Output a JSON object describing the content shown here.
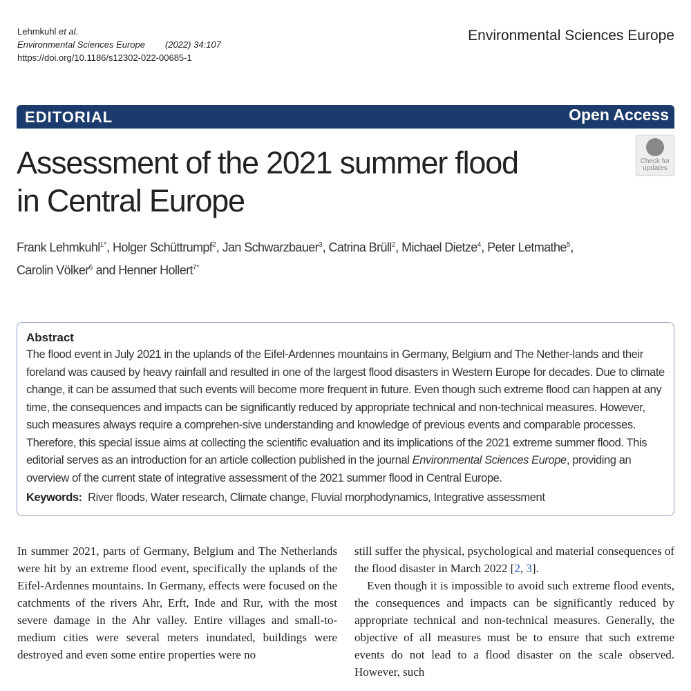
{
  "header": {
    "authors_short": "Lehmkuhl",
    "et_al": "et al.",
    "journal": "Environmental Sciences Europe",
    "citation": "(2022) 34:107",
    "doi": "https://doi.org/10.1186/s12302-022-00685-1",
    "journal_right": "Environmental Sciences Europe"
  },
  "banner": {
    "type": "EDITORIAL",
    "access": "Open Access",
    "color": "#1a3b6b"
  },
  "title_line1": "Assessment of the 2021 summer flood",
  "title_line2": "in Central Europe",
  "check_updates": {
    "line1": "Check for",
    "line2": "updates"
  },
  "authors": [
    {
      "name": "Frank Lehmkuhl",
      "sup": "1*"
    },
    {
      "name": "Holger Schüttrumpf",
      "sup": "2"
    },
    {
      "name": "Jan Schwarzbauer",
      "sup": "3"
    },
    {
      "name": "Catrina Brüll",
      "sup": "2"
    },
    {
      "name": "Michael Dietze",
      "sup": "4"
    },
    {
      "name": "Peter Letmathe",
      "sup": "5"
    },
    {
      "name": "Carolin Völker",
      "sup": "6"
    },
    {
      "name": "Henner Hollert",
      "sup": "7*"
    }
  ],
  "authors_sep": ", ",
  "authors_and": " and ",
  "abstract": {
    "heading": "Abstract",
    "text_before": "The flood event in July 2021 in the uplands of the Eifel-Ardennes mountains in Germany, Belgium and The Nether-lands and their foreland was caused by heavy rainfall and resulted in one of the largest flood disasters in Western Europe for decades. Due to climate change, it can be assumed that such events will become more frequent in future. Even though such extreme flood can happen at any time, the consequences and impacts can be significantly reduced by appropriate technical and non-technical measures. However, such measures always require a comprehen-sive understanding and knowledge of previous events and comparable processes. Therefore, this special issue aims at collecting the scientific evaluation and its implications of the 2021 extreme summer flood. This editorial serves as an introduction for an article collection published in the journal ",
    "text_italic": "Environmental Sciences Europe",
    "text_after": ", providing an overview of the current state of integrative assessment of the 2021 summer flood in Central Europe.",
    "keywords_label": "Keywords:",
    "keywords": "River floods, Water research, Climate change, Fluvial morphodynamics, Integrative assessment"
  },
  "body": {
    "left": "In summer 2021, parts of Germany, Belgium and The Netherlands were hit by an extreme flood event, specifically the uplands of the Eifel-Ardennes mountains. In Germany, effects were focused on the catchments of the rivers Ahr, Erft, Inde and Rur, with the most severe damage in the Ahr valley. Entire villages and small-to-medium cities were several meters inundated, buildings were destroyed and even some entire properties were no",
    "right_p1_before": "still suffer the physical, psychological and material consequences of the flood disaster in March 2022 [",
    "ref1": "2",
    "ref_sep": ", ",
    "ref2": "3",
    "right_p1_after": "].",
    "right_p2": "Even though it is impossible to avoid such extreme flood events, the consequences and impacts can be significantly reduced by appropriate technical and non-technical measures. Generally, the objective of all measures must be to ensure that such extreme events do not lead to a flood disaster on the scale observed. However, such"
  }
}
